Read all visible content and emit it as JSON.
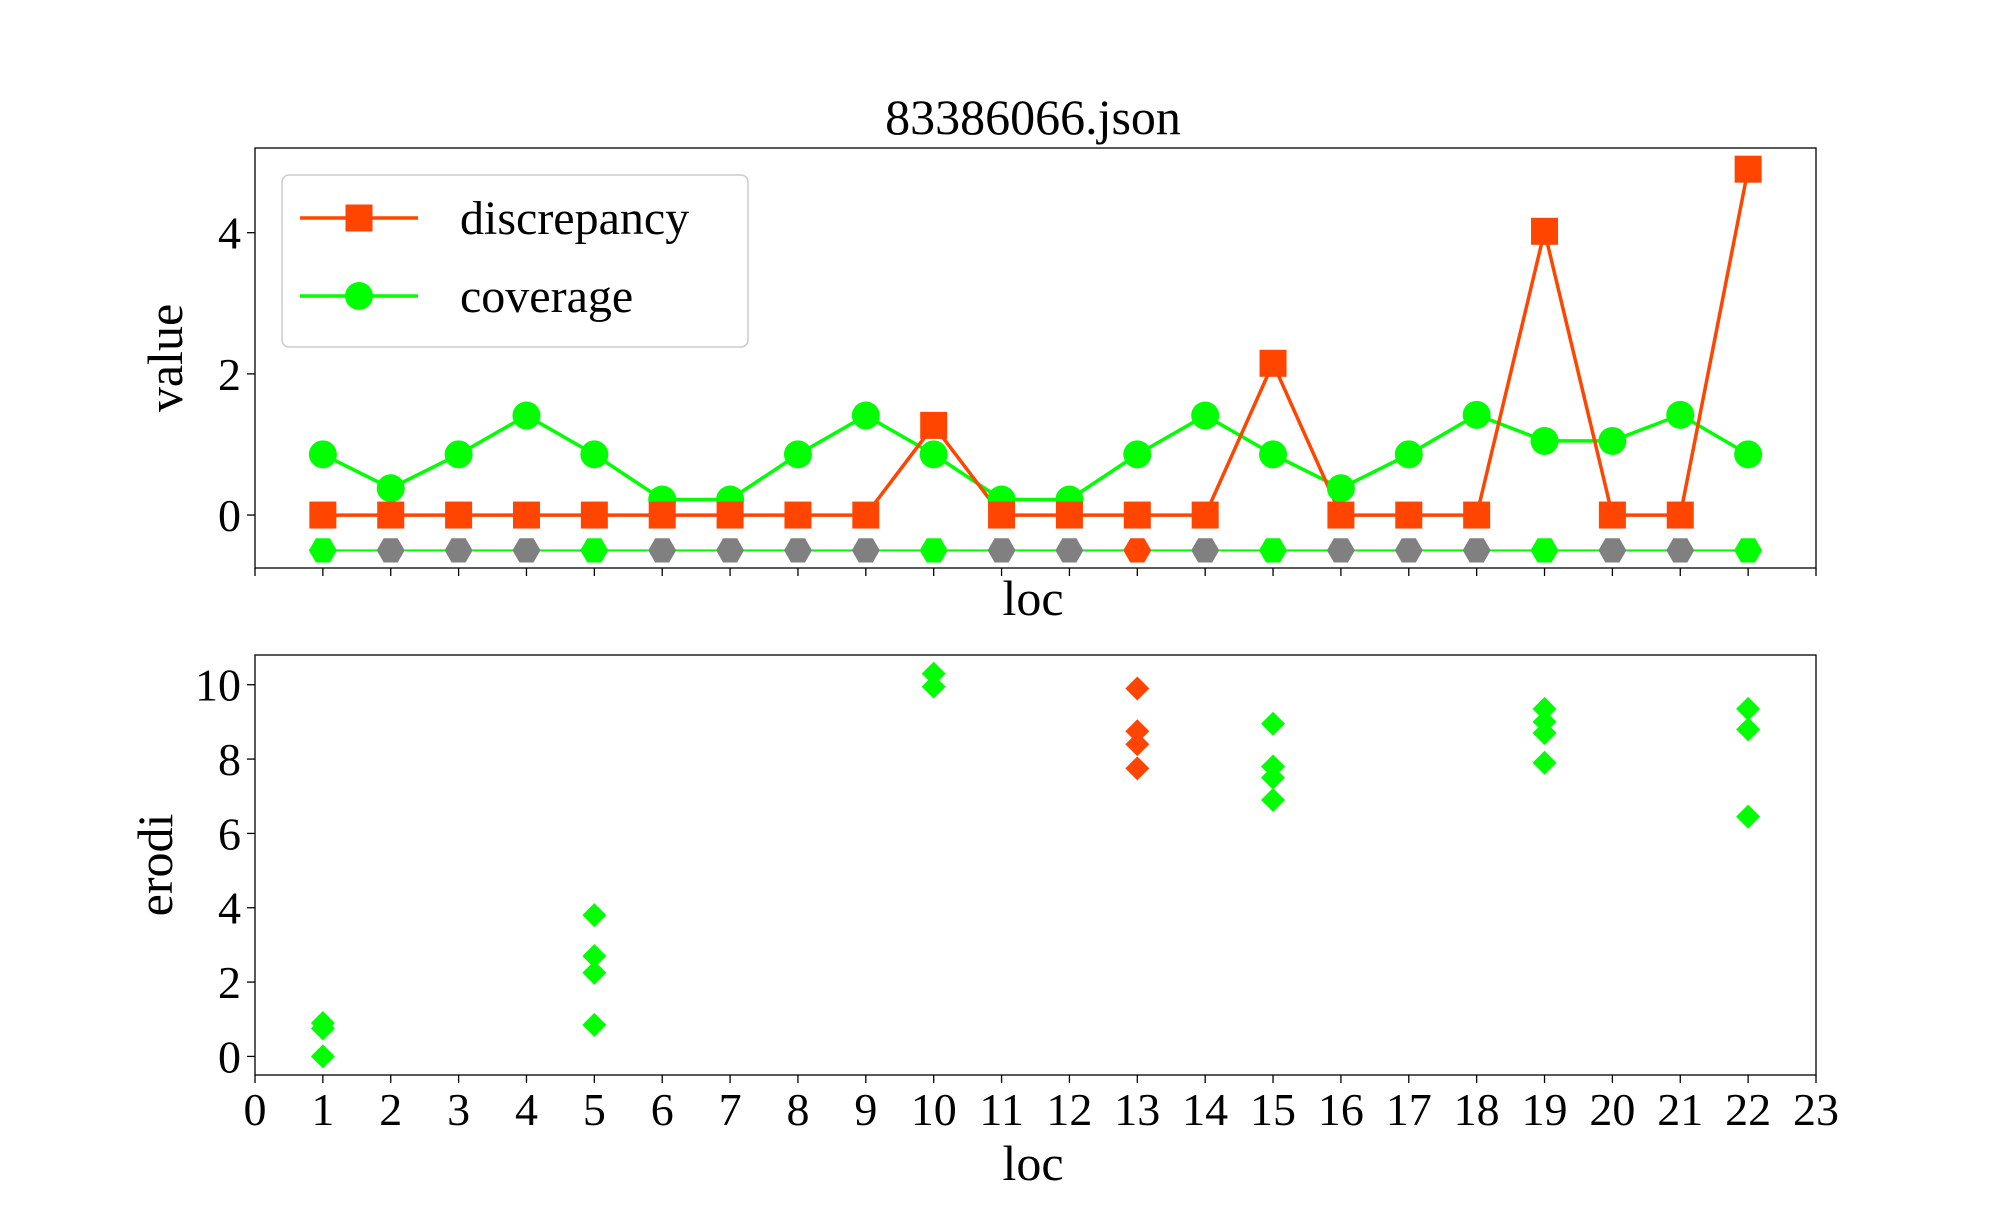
{
  "title": "83386066.json",
  "colors": {
    "discrepancy": "#ff4500",
    "coverage": "#00ff00",
    "status_gray": "#808080",
    "status_green": "#00ff00",
    "status_orange": "#ff4500"
  },
  "chart_data": [
    {
      "type": "line",
      "title": "83386066.json",
      "xlabel": "loc",
      "ylabel": "value",
      "xlim": [
        0,
        23
      ],
      "ylim": [
        -0.75,
        5.2
      ],
      "yticks": [
        "0",
        "2",
        "4"
      ],
      "ytick_values": [
        0,
        2,
        4
      ],
      "legend_placement": "upper-left",
      "grid": false,
      "x": [
        1,
        2,
        3,
        4,
        5,
        6,
        7,
        8,
        9,
        10,
        11,
        12,
        13,
        14,
        15,
        16,
        17,
        18,
        19,
        20,
        21,
        22
      ],
      "series": [
        {
          "name": "discrepancy",
          "marker": "square",
          "values": [
            0,
            0,
            0,
            0,
            0,
            0,
            0,
            0,
            0,
            1.27,
            0,
            0,
            0,
            0,
            2.15,
            0,
            0,
            0,
            4.02,
            0,
            0,
            4.9
          ]
        },
        {
          "name": "coverage",
          "marker": "circle",
          "values": [
            0.86,
            0.38,
            0.86,
            1.41,
            0.86,
            0.22,
            0.22,
            0.86,
            1.41,
            0.86,
            0.22,
            0.22,
            0.86,
            1.41,
            0.86,
            0.38,
            0.86,
            1.42,
            1.05,
            1.05,
            1.42,
            0.86
          ]
        }
      ],
      "status_row": {
        "y": -0.5,
        "marker": "hexagon",
        "states": [
          "green",
          "gray",
          "gray",
          "gray",
          "green",
          "gray",
          "gray",
          "gray",
          "gray",
          "green",
          "gray",
          "gray",
          "orange",
          "gray",
          "green",
          "gray",
          "gray",
          "gray",
          "green",
          "gray",
          "gray",
          "green"
        ]
      }
    },
    {
      "type": "scatter",
      "xlabel": "loc",
      "ylabel": "erodi",
      "xlim": [
        0,
        23
      ],
      "ylim": [
        -0.5,
        10.8
      ],
      "xticks": [
        "0",
        "1",
        "2",
        "3",
        "4",
        "5",
        "6",
        "7",
        "8",
        "9",
        "10",
        "11",
        "12",
        "13",
        "14",
        "15",
        "16",
        "17",
        "18",
        "19",
        "20",
        "21",
        "22",
        "23"
      ],
      "yticks": [
        "0",
        "2",
        "4",
        "6",
        "8",
        "10"
      ],
      "ytick_values": [
        0,
        2,
        4,
        6,
        8,
        10
      ],
      "grid": false,
      "points": [
        {
          "x": 1,
          "y": 0.0,
          "status": "green"
        },
        {
          "x": 1,
          "y": 0.75,
          "status": "green"
        },
        {
          "x": 1,
          "y": 0.9,
          "status": "green"
        },
        {
          "x": 5,
          "y": 0.85,
          "status": "green"
        },
        {
          "x": 5,
          "y": 2.25,
          "status": "green"
        },
        {
          "x": 5,
          "y": 2.7,
          "status": "green"
        },
        {
          "x": 5,
          "y": 3.8,
          "status": "green"
        },
        {
          "x": 10,
          "y": 9.95,
          "status": "green"
        },
        {
          "x": 10,
          "y": 10.3,
          "status": "green"
        },
        {
          "x": 13,
          "y": 7.75,
          "status": "orange"
        },
        {
          "x": 13,
          "y": 8.4,
          "status": "orange"
        },
        {
          "x": 13,
          "y": 8.75,
          "status": "orange"
        },
        {
          "x": 13,
          "y": 9.9,
          "status": "orange"
        },
        {
          "x": 15,
          "y": 6.9,
          "status": "green"
        },
        {
          "x": 15,
          "y": 7.5,
          "status": "green"
        },
        {
          "x": 15,
          "y": 7.8,
          "status": "green"
        },
        {
          "x": 15,
          "y": 8.95,
          "status": "green"
        },
        {
          "x": 19,
          "y": 7.9,
          "status": "green"
        },
        {
          "x": 19,
          "y": 8.7,
          "status": "green"
        },
        {
          "x": 19,
          "y": 9.0,
          "status": "green"
        },
        {
          "x": 19,
          "y": 9.35,
          "status": "green"
        },
        {
          "x": 22,
          "y": 6.45,
          "status": "green"
        },
        {
          "x": 22,
          "y": 8.8,
          "status": "green"
        },
        {
          "x": 22,
          "y": 9.35,
          "status": "green"
        }
      ]
    }
  ]
}
